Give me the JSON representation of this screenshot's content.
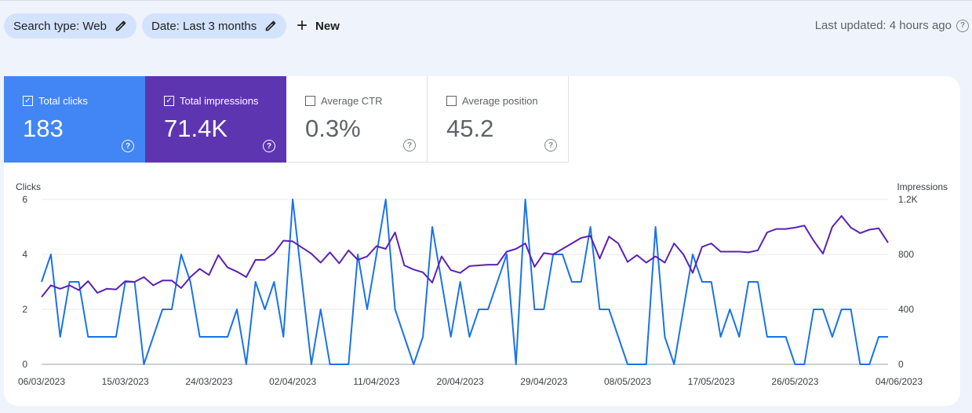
{
  "filters": {
    "search_type": "Search type: Web",
    "date": "Date: Last 3 months",
    "new_label": "New"
  },
  "header": {
    "last_updated": "Last updated: 4 hours ago"
  },
  "colors": {
    "clicks": "#4285f4",
    "impressions": "#5e35b1",
    "clicks_line": "#1a73e8",
    "impressions_line": "#5b21b6"
  },
  "metrics": {
    "clicks": {
      "label": "Total clicks",
      "value": "183",
      "checked": true
    },
    "impressions": {
      "label": "Total impressions",
      "value": "71.4K",
      "checked": true
    },
    "ctr": {
      "label": "Average CTR",
      "value": "0.3%",
      "checked": false
    },
    "position": {
      "label": "Average position",
      "value": "45.2",
      "checked": false
    }
  },
  "chart_data": {
    "type": "line",
    "left_axis_label": "Clicks",
    "right_axis_label": "Impressions",
    "left_ticks": [
      "6",
      "4",
      "2",
      "0"
    ],
    "right_ticks": [
      "1.2K",
      "800",
      "400",
      "0"
    ],
    "ylim_left": [
      0,
      6
    ],
    "ylim_right": [
      0,
      1200
    ],
    "x_tick_labels": [
      "06/03/2023",
      "15/03/2023",
      "24/03/2023",
      "02/04/2023",
      "11/04/2023",
      "20/04/2023",
      "29/04/2023",
      "08/05/2023",
      "17/05/2023",
      "26/05/2023",
      "04/06/2023"
    ],
    "series": [
      {
        "name": "Clicks",
        "axis": "left",
        "values": [
          3,
          4,
          1,
          3,
          3,
          1,
          1,
          1,
          1,
          3,
          3,
          0,
          1,
          2,
          2,
          4,
          3,
          1,
          1,
          1,
          1,
          2,
          0,
          3,
          2,
          3,
          1,
          6,
          3,
          0,
          2,
          0,
          0,
          0,
          4,
          2,
          4,
          6,
          2,
          1,
          0,
          1,
          5,
          3,
          1,
          3,
          1,
          2,
          2,
          3,
          4,
          0,
          6,
          2,
          2,
          4,
          4,
          3,
          3,
          5,
          2,
          2,
          1,
          0,
          0,
          0,
          5,
          1,
          0,
          2,
          4,
          3,
          3,
          1,
          2,
          1,
          3,
          3,
          1,
          1,
          1,
          0,
          0,
          2,
          2,
          1,
          2,
          2,
          0,
          0,
          1,
          1
        ]
      },
      {
        "name": "Impressions",
        "axis": "right",
        "values": [
          490,
          575,
          550,
          575,
          540,
          605,
          520,
          550,
          545,
          605,
          600,
          635,
          575,
          610,
          610,
          555,
          635,
          695,
          650,
          795,
          705,
          675,
          635,
          760,
          760,
          810,
          900,
          895,
          850,
          805,
          740,
          815,
          735,
          830,
          760,
          785,
          860,
          840,
          960,
          720,
          690,
          670,
          595,
          785,
          685,
          665,
          715,
          720,
          725,
          725,
          820,
          840,
          880,
          710,
          810,
          800,
          840,
          880,
          920,
          935,
          770,
          930,
          880,
          745,
          795,
          740,
          785,
          740,
          880,
          800,
          665,
          855,
          880,
          820,
          820,
          820,
          815,
          830,
          960,
          985,
          985,
          995,
          1010,
          900,
          805,
          1000,
          1080,
          995,
          955,
          980,
          990,
          885
        ]
      }
    ]
  }
}
